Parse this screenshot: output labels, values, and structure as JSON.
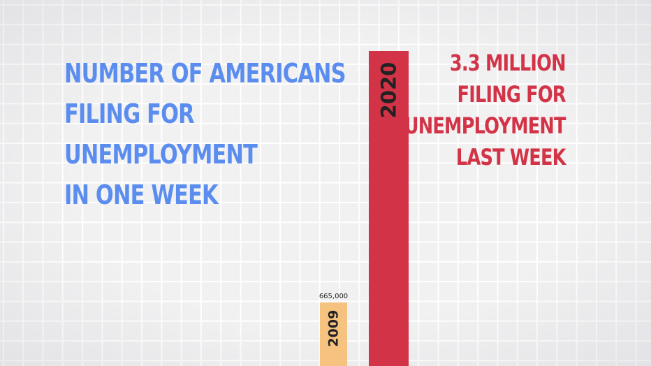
{
  "colors": {
    "headline": "#5b8def",
    "callout": "#d33347",
    "bar_2020": "#d33347",
    "bar_2009": "#f5c27f",
    "label_text": "#222222"
  },
  "headline": {
    "lines": [
      "NUMBER OF AMERICANS",
      "FILING FOR",
      "UNEMPLOYMENT",
      "IN ONE WEEK"
    ]
  },
  "callout": {
    "lines": [
      "3.3 MILLION",
      "FILING FOR",
      "UNEMPLOYMENT",
      "LAST WEEK"
    ]
  },
  "chart_data": {
    "type": "bar",
    "title": "NUMBER OF AMERICANS FILING FOR UNEMPLOYMENT IN ONE WEEK",
    "categories": [
      "2009",
      "2020"
    ],
    "values": [
      665000,
      3300000
    ],
    "data_labels": [
      "665,000",
      ""
    ],
    "bar_colors": [
      "#f5c27f",
      "#d33347"
    ],
    "xlabel": "",
    "ylabel": "",
    "grid": true,
    "bar_labels_inside": true
  }
}
